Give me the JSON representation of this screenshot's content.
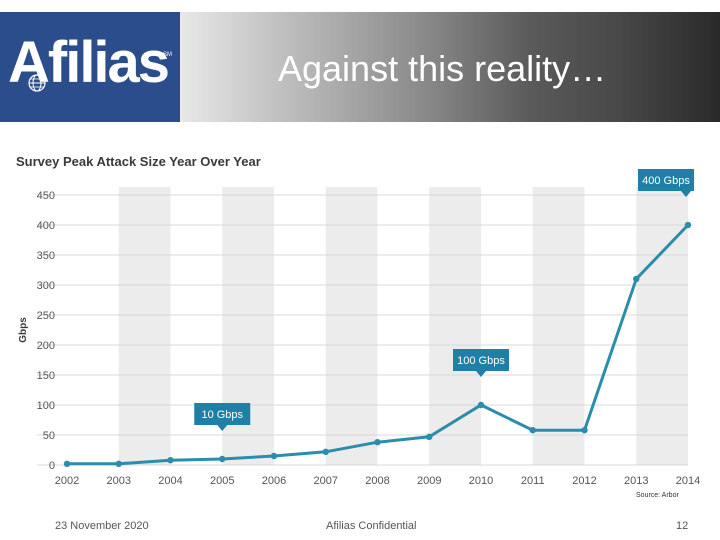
{
  "header": {
    "logo": "Afilias",
    "title": "Against this reality…"
  },
  "colors": {
    "line": "#2b8cab",
    "callout": "#1f7fa6",
    "band": "#ececec",
    "logo_bg": "#2b4d8c"
  },
  "chart_data": {
    "type": "line",
    "title": "Survey Peak Attack Size Year Over Year",
    "ylabel": "Gbps",
    "xlabel": "",
    "categories": [
      "2002",
      "2003",
      "2004",
      "2005",
      "2006",
      "2007",
      "2008",
      "2009",
      "2010",
      "2011",
      "2012",
      "2013",
      "2014"
    ],
    "values": [
      2,
      2,
      8,
      10,
      15,
      22,
      38,
      47,
      100,
      58,
      58,
      310,
      400
    ],
    "ylim": [
      0,
      450
    ],
    "yticks": [
      0,
      50,
      100,
      150,
      200,
      250,
      300,
      350,
      400,
      450
    ],
    "grid": true,
    "annotations": [
      {
        "category": "2005",
        "value": 10,
        "text": "10 Gbps"
      },
      {
        "category": "2010",
        "value": 100,
        "text": "100 Gbps"
      },
      {
        "category": "2014",
        "value": 400,
        "text": "400 Gbps"
      }
    ],
    "source": "Source: Arbor"
  },
  "footer": {
    "date": "23 November 2020",
    "confidential": "Afilias Confidential",
    "page": "12"
  }
}
